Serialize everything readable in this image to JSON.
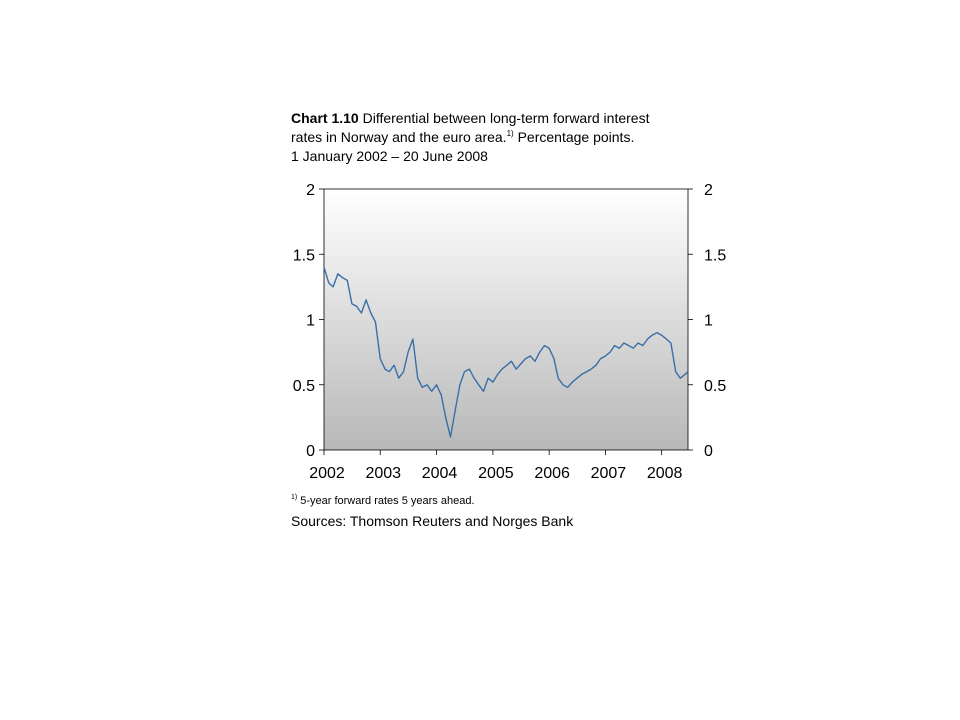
{
  "title": {
    "chart_number": "Chart 1.10",
    "text_line1": "Differential between long-term forward interest",
    "text_line2": "rates in Norway and the euro area.",
    "footnote_marker": "1)",
    "unit": "Percentage points.",
    "period": "1 January 2002 – 20 June 2008"
  },
  "footnote": {
    "marker": "1)",
    "text": "5-year forward rates 5 years ahead."
  },
  "sources": "Sources: Thomson Reuters and Norges Bank",
  "colors": {
    "line": "#3a6fa8",
    "plot_top": "#ffffff",
    "plot_bottom": "#b8b8b8",
    "axis": "#000000"
  },
  "chart_data": {
    "type": "line",
    "title": "Differential between long-term forward interest rates in Norway and the euro area. Percentage points. 1 January 2002 – 20 June 2008",
    "xlabel": "",
    "ylabel": "",
    "x_ticks": [
      "2002",
      "2003",
      "2004",
      "2005",
      "2006",
      "2007",
      "2008"
    ],
    "xlim": [
      "2002-01-01",
      "2008-06-20"
    ],
    "ylim": [
      0,
      2
    ],
    "y_ticks": [
      "0",
      "0.5",
      "1",
      "1.5",
      "2"
    ],
    "y_axes": [
      "left",
      "right"
    ],
    "grid": false,
    "legend": "none",
    "series": [
      {
        "x": [
          "2002-01-01",
          "2002-02-01",
          "2002-03-01",
          "2002-04-01",
          "2002-05-01",
          "2002-06-01",
          "2002-07-01",
          "2002-08-01",
          "2002-09-01",
          "2002-10-01",
          "2002-11-01",
          "2002-12-01",
          "2003-01-01",
          "2003-02-01",
          "2003-03-01",
          "2003-04-01",
          "2003-05-01",
          "2003-06-01",
          "2003-07-01",
          "2003-08-01",
          "2003-09-01",
          "2003-10-01",
          "2003-11-01",
          "2003-12-01",
          "2004-01-01",
          "2004-02-01",
          "2004-03-01",
          "2004-04-01",
          "2004-05-01",
          "2004-06-01",
          "2004-07-01",
          "2004-08-01",
          "2004-09-01",
          "2004-10-01",
          "2004-11-01",
          "2004-12-01",
          "2005-01-01",
          "2005-02-01",
          "2005-03-01",
          "2005-04-01",
          "2005-05-01",
          "2005-06-01",
          "2005-07-01",
          "2005-08-01",
          "2005-09-01",
          "2005-10-01",
          "2005-11-01",
          "2005-12-01",
          "2006-01-01",
          "2006-02-01",
          "2006-03-01",
          "2006-04-01",
          "2006-05-01",
          "2006-06-01",
          "2006-07-01",
          "2006-08-01",
          "2006-09-01",
          "2006-10-01",
          "2006-11-01",
          "2006-12-01",
          "2007-01-01",
          "2007-02-01",
          "2007-03-01",
          "2007-04-01",
          "2007-05-01",
          "2007-06-01",
          "2007-07-01",
          "2007-08-01",
          "2007-09-01",
          "2007-10-01",
          "2007-11-01",
          "2007-12-01",
          "2008-01-01",
          "2008-02-01",
          "2008-03-01",
          "2008-04-01",
          "2008-05-01",
          "2008-06-01",
          "2008-06-20"
        ],
        "values": [
          1.4,
          1.28,
          1.25,
          1.35,
          1.32,
          1.3,
          1.12,
          1.1,
          1.05,
          1.15,
          1.05,
          0.98,
          0.7,
          0.62,
          0.6,
          0.65,
          0.55,
          0.6,
          0.75,
          0.85,
          0.55,
          0.48,
          0.5,
          0.45,
          0.5,
          0.42,
          0.25,
          0.1,
          0.3,
          0.5,
          0.6,
          0.62,
          0.55,
          0.5,
          0.45,
          0.55,
          0.52,
          0.58,
          0.62,
          0.65,
          0.68,
          0.62,
          0.66,
          0.7,
          0.72,
          0.68,
          0.75,
          0.8,
          0.78,
          0.7,
          0.55,
          0.5,
          0.48,
          0.52,
          0.55,
          0.58,
          0.6,
          0.62,
          0.65,
          0.7,
          0.72,
          0.75,
          0.8,
          0.78,
          0.82,
          0.8,
          0.78,
          0.82,
          0.8,
          0.85,
          0.88,
          0.9,
          0.88,
          0.85,
          0.82,
          0.6,
          0.55,
          0.58,
          0.6
        ]
      }
    ]
  }
}
